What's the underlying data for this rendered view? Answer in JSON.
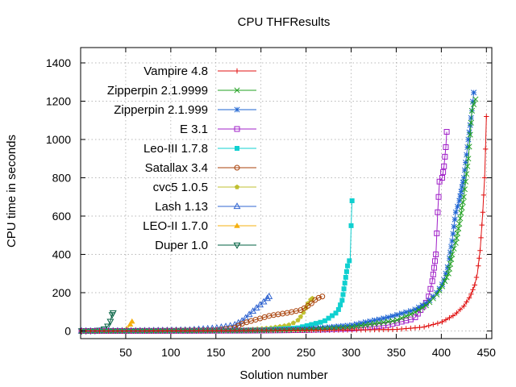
{
  "chart_data": {
    "type": "line",
    "title": "CPU THFResults",
    "xlabel": "Solution number",
    "ylabel": "CPU time in seconds",
    "xlim": [
      0,
      456
    ],
    "ylim": [
      -40,
      1480
    ],
    "xticks": [
      50,
      100,
      150,
      200,
      250,
      300,
      350,
      400,
      450
    ],
    "yticks": [
      0,
      200,
      400,
      600,
      800,
      1000,
      1200,
      1400
    ],
    "grid": true,
    "legend_position": "top-left",
    "series": [
      {
        "name": "Vampire 4.8",
        "color": "#e01010",
        "marker": "plus",
        "end": 450,
        "x": [
          1,
          50,
          100,
          150,
          200,
          250,
          300,
          350,
          380,
          400,
          415,
          425,
          432,
          437,
          440,
          443,
          446,
          448,
          449,
          450
        ],
        "y": [
          0,
          0,
          0.5,
          1,
          2,
          3,
          5,
          8,
          20,
          45,
          85,
          130,
          180,
          240,
          300,
          420,
          620,
          800,
          950,
          1120
        ]
      },
      {
        "name": "Zipperpin 2.1.9999",
        "color": "#20a020",
        "marker": "x",
        "end": 438,
        "x": [
          1,
          100,
          200,
          250,
          300,
          350,
          370,
          385,
          395,
          402,
          408,
          412,
          416,
          420,
          425,
          430,
          434,
          437,
          438
        ],
        "y": [
          0,
          1,
          3,
          7,
          20,
          55,
          95,
          140,
          190,
          240,
          300,
          400,
          460,
          560,
          700,
          900,
          1150,
          1200,
          1210
        ]
      },
      {
        "name": "Zipperpin 2.1.999",
        "color": "#1e64d2",
        "marker": "star",
        "end": 436,
        "x": [
          1,
          100,
          200,
          250,
          300,
          340,
          370,
          385,
          395,
          402,
          408,
          412,
          416,
          420,
          425,
          430,
          434,
          436
        ],
        "y": [
          0,
          1,
          3,
          10,
          30,
          70,
          110,
          150,
          200,
          250,
          350,
          470,
          620,
          680,
          800,
          1000,
          1150,
          1245
        ]
      },
      {
        "name": "E 3.1",
        "color": "#a020c8",
        "marker": "square-open",
        "end": 406,
        "x": [
          1,
          100,
          200,
          250,
          300,
          340,
          370,
          385,
          390,
          394,
          396,
          398,
          401,
          403,
          405,
          406
        ],
        "y": [
          0,
          0.5,
          2,
          5,
          12,
          30,
          65,
          160,
          260,
          400,
          620,
          780,
          800,
          860,
          960,
          1040
        ]
      },
      {
        "name": "Leo-III 1.7.8",
        "color": "#10d0d0",
        "marker": "square-filled",
        "end": 301,
        "x": [
          1,
          100,
          200,
          240,
          270,
          285,
          290,
          293,
          296,
          299,
          300,
          301
        ],
        "y": [
          0,
          2,
          5,
          15,
          50,
          100,
          160,
          250,
          340,
          380,
          550,
          680
        ]
      },
      {
        "name": "Satallax 3.4",
        "color": "#a84008",
        "marker": "circle-open",
        "end": 268,
        "x": [
          1,
          80,
          150,
          170,
          180,
          195,
          210,
          230,
          245,
          255,
          262,
          268
        ],
        "y": [
          0,
          1,
          5,
          15,
          40,
          60,
          80,
          95,
          110,
          140,
          170,
          180
        ]
      },
      {
        "name": "cvc5 1.0.5",
        "color": "#c0c030",
        "marker": "pentagon",
        "end": 257,
        "x": [
          1,
          60,
          120,
          180,
          210,
          230,
          240,
          245,
          250,
          253,
          257
        ],
        "y": [
          0,
          0.5,
          2,
          6,
          15,
          30,
          50,
          80,
          120,
          155,
          170
        ]
      },
      {
        "name": "Lash 1.13",
        "color": "#3064d0",
        "marker": "triangle-open",
        "end": 209,
        "x": [
          1,
          60,
          120,
          150,
          170,
          180,
          188,
          195,
          200,
          205,
          209
        ],
        "y": [
          0,
          1,
          5,
          15,
          30,
          55,
          90,
          120,
          140,
          160,
          180
        ]
      },
      {
        "name": "LEO-II 1.7.0",
        "color": "#f5b010",
        "marker": "triangle-filled",
        "end": 57,
        "x": [
          1,
          10,
          20,
          30,
          40,
          45,
          50,
          53,
          55,
          57
        ],
        "y": [
          0,
          0,
          0.5,
          1,
          2,
          4,
          8,
          20,
          35,
          50
        ]
      },
      {
        "name": "Duper 1.0",
        "color": "#006040",
        "marker": "triangle-down-open",
        "end": 36,
        "x": [
          1,
          10,
          15,
          20,
          25,
          28,
          31,
          33,
          34,
          35,
          36
        ],
        "y": [
          0,
          0.5,
          1,
          3,
          8,
          15,
          30,
          50,
          70,
          85,
          95
        ]
      }
    ]
  }
}
